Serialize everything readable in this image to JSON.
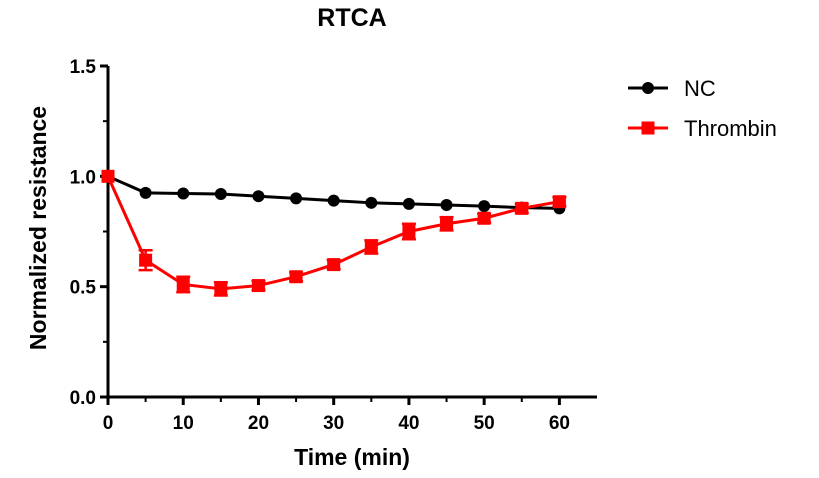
{
  "chart_data": {
    "type": "line",
    "title": "RTCA",
    "xlabel": "Time (min)",
    "ylabel": "Normalized resistance",
    "xlim": [
      0,
      65
    ],
    "ylim": [
      0,
      1.5
    ],
    "xticks": [
      0,
      10,
      20,
      30,
      40,
      50,
      60
    ],
    "xtick_labels": [
      "0",
      "10",
      "20",
      "30",
      "40",
      "50",
      "60"
    ],
    "yticks": [
      0,
      0.5,
      1.0,
      1.5
    ],
    "ytick_labels": [
      "0.0",
      "0.5",
      "1.0",
      "1.5"
    ],
    "grid": false,
    "legend_position": "top-right",
    "series": [
      {
        "name": "NC",
        "color": "#000000",
        "marker": "circle",
        "x": [
          0,
          5,
          10,
          15,
          20,
          25,
          30,
          35,
          40,
          45,
          50,
          55,
          60
        ],
        "y": [
          1.0,
          0.925,
          0.922,
          0.92,
          0.91,
          0.9,
          0.89,
          0.88,
          0.875,
          0.87,
          0.865,
          0.858,
          0.855
        ],
        "err": [
          0,
          0,
          0,
          0,
          0,
          0,
          0,
          0,
          0,
          0,
          0,
          0,
          0
        ]
      },
      {
        "name": "Thrombin",
        "color": "#ff0000",
        "marker": "square",
        "x": [
          0,
          5,
          10,
          15,
          20,
          25,
          30,
          35,
          40,
          45,
          50,
          55,
          60
        ],
        "y": [
          1.0,
          0.62,
          0.51,
          0.49,
          0.505,
          0.545,
          0.6,
          0.68,
          0.75,
          0.785,
          0.81,
          0.855,
          0.885
        ],
        "err": [
          0,
          0.045,
          0.035,
          0.03,
          0.02,
          0.02,
          0.02,
          0.03,
          0.035,
          0.03,
          0.02,
          0.02,
          0.02
        ]
      }
    ]
  }
}
